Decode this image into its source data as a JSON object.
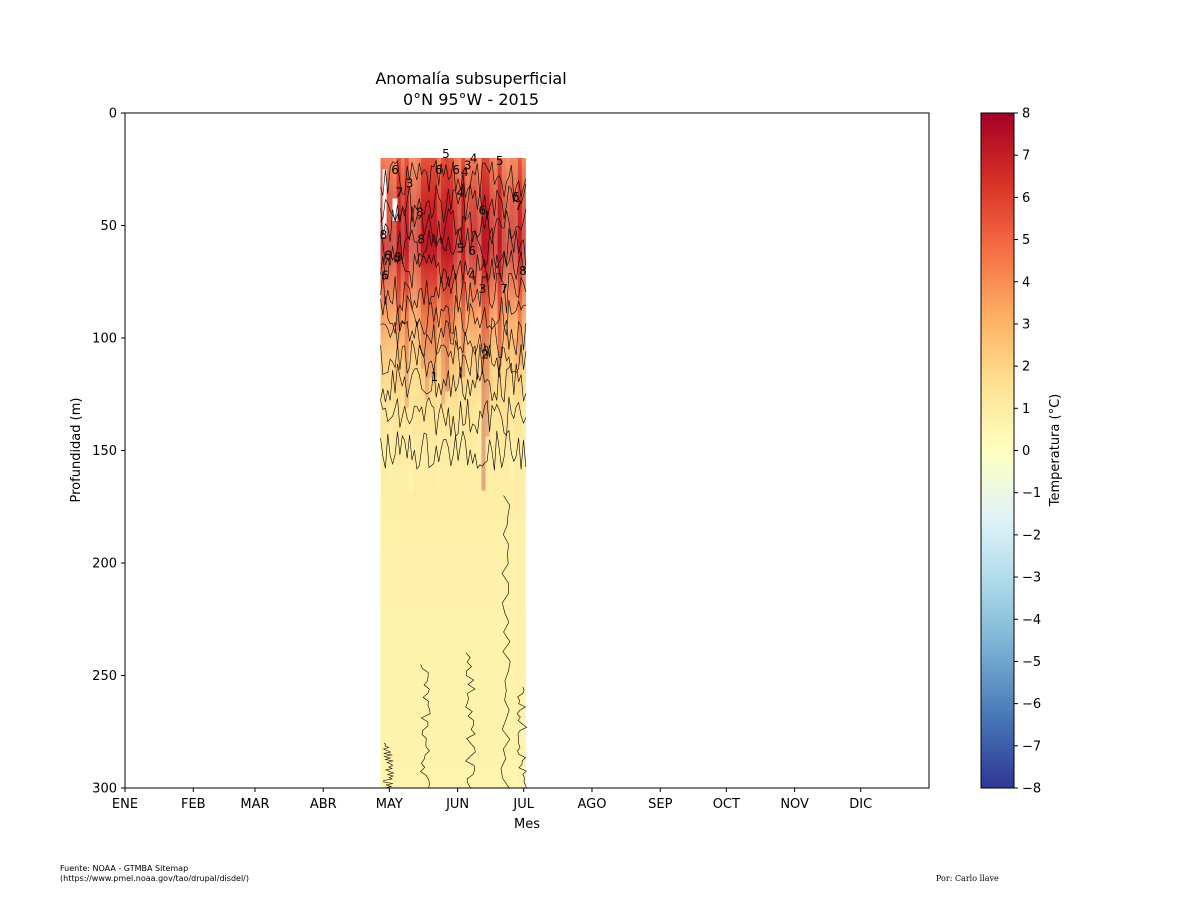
{
  "chart_data": {
    "type": "heatmap",
    "title_line1": "Anomalía subsuperficial",
    "title_line2": "0°N 95°W - 2015",
    "xlabel": "Mes",
    "ylabel": "Profundidad (m)",
    "x_categories": [
      "ENE",
      "FEB",
      "MAR",
      "ABR",
      "MAY",
      "JUN",
      "JUL",
      "AGO",
      "SEP",
      "OCT",
      "NOV",
      "DIC"
    ],
    "y_ticks": [
      0,
      50,
      100,
      150,
      200,
      250,
      300
    ],
    "ylim": [
      300,
      0
    ],
    "data_range_days": [
      116,
      182
    ],
    "data_depth_range_m": [
      20,
      300
    ],
    "depth_profile": [
      {
        "depth": 20,
        "anomaly": 5
      },
      {
        "depth": 40,
        "anomaly": 6.5
      },
      {
        "depth": 60,
        "anomaly": 7
      },
      {
        "depth": 75,
        "anomaly": 5.5
      },
      {
        "depth": 90,
        "anomaly": 4
      },
      {
        "depth": 110,
        "anomaly": 2.5
      },
      {
        "depth": 130,
        "anomaly": 1.5
      },
      {
        "depth": 150,
        "anomaly": 1.0
      },
      {
        "depth": 200,
        "anomaly": 0.7
      },
      {
        "depth": 300,
        "anomaly": 0.6
      }
    ],
    "contour_labels": [
      "5",
      "3",
      "4",
      "5",
      "4",
      "6",
      "6",
      "6",
      "3",
      "4",
      "7",
      "7",
      "8",
      "6",
      "6",
      "8",
      "8",
      "6",
      "5",
      "5",
      "6",
      "4",
      "6",
      "8",
      "3",
      "7",
      "2",
      "1"
    ],
    "colorbar": {
      "label": "Temperatura (°C)",
      "min": -8,
      "max": 8,
      "ticks": [
        8,
        7,
        6,
        5,
        4,
        3,
        2,
        1,
        0,
        -1,
        -2,
        -3,
        -4,
        -5,
        -6,
        -7,
        -8
      ],
      "colors": [
        "#313695",
        "#4575b4",
        "#74add1",
        "#abd9e9",
        "#e0f3f8",
        "#ffffbf",
        "#fee090",
        "#fdae61",
        "#f46d43",
        "#d73027",
        "#a50026"
      ]
    }
  },
  "footer": {
    "source_line1": "Fuente: NOAA - GTMBA Sitemap",
    "source_line2": "(https://www.pmel.noaa.gov/tao/drupal/disdel/)",
    "author": "Por: Carlo llave"
  }
}
